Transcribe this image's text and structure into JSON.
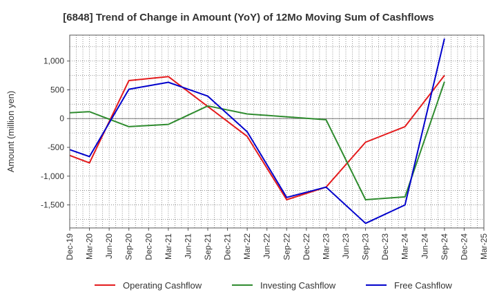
{
  "chart_data": {
    "type": "line",
    "title": "[6848]  Trend of Change in Amount (YoY) of 12Mo Moving Sum of Cashflows",
    "ylabel": "Amount (million yen)",
    "xlabel": "",
    "ylim": [
      -1900,
      1450
    ],
    "yticks": [
      1000,
      500,
      0,
      -500,
      -1000,
      -1500
    ],
    "ytick_labels": [
      "1,000",
      "500",
      "0",
      "-500",
      "-1,000",
      "-1,500"
    ],
    "categories": [
      "Dec-19",
      "Mar-20",
      "Jun-20",
      "Sep-20",
      "Dec-20",
      "Mar-21",
      "Jun-21",
      "Sep-21",
      "Dec-21",
      "Mar-22",
      "Jun-22",
      "Sep-22",
      "Dec-22",
      "Mar-23",
      "Jun-23",
      "Sep-23",
      "Dec-23",
      "Mar-24",
      "Jun-24",
      "Sep-24",
      "Dec-24",
      "Mar-25"
    ],
    "grid": true,
    "legend_position": "bottom",
    "series": [
      {
        "name": "Operating Cashflow",
        "color": "#e41a1c",
        "values": [
          -640,
          -770,
          null,
          660,
          null,
          730,
          null,
          null,
          null,
          -310,
          null,
          -1410,
          null,
          -1190,
          null,
          -410,
          null,
          -140,
          null,
          750,
          null,
          null
        ]
      },
      {
        "name": "Investing Cashflow",
        "color": "#2e8b2e",
        "values": [
          100,
          120,
          null,
          -140,
          null,
          -100,
          null,
          220,
          null,
          80,
          null,
          null,
          null,
          -20,
          null,
          -1410,
          null,
          -1360,
          null,
          640,
          null,
          null
        ]
      },
      {
        "name": "Free Cashflow",
        "color": "#0000cc",
        "values": [
          -540,
          -660,
          null,
          510,
          null,
          630,
          null,
          390,
          null,
          -230,
          null,
          -1370,
          null,
          -1190,
          null,
          -1820,
          null,
          -1500,
          null,
          1390,
          null,
          null
        ]
      }
    ]
  }
}
